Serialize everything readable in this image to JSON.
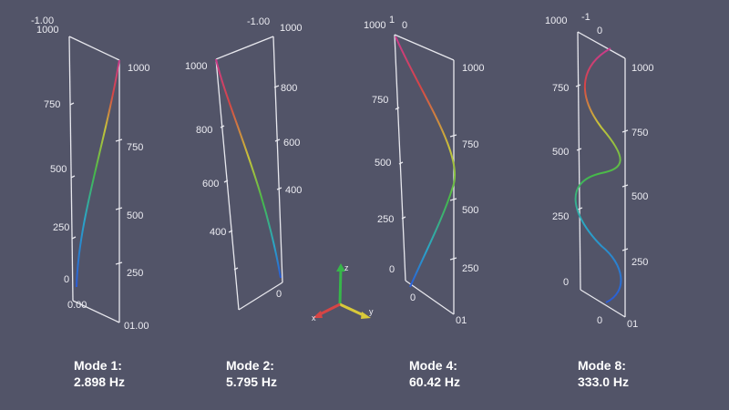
{
  "colors": {
    "background": "#525468",
    "frame": "#e8e8ee",
    "text": "#ececf2",
    "label": "#ffffff",
    "gradient": [
      "#2a5bd7",
      "#2aa6c8",
      "#45b94a",
      "#c8c43a",
      "#d64545",
      "#c93c8e"
    ]
  },
  "panels": [
    {
      "id": "mode1",
      "title": "Mode 1:",
      "freq": "2.898 Hz",
      "top_left_labels": [
        "-1.00",
        "1000"
      ],
      "left_axis": [
        "750",
        "500",
        "250",
        "0"
      ],
      "left_bottom": "0.00",
      "right_axis": [
        "1000",
        "750",
        "500",
        "250"
      ],
      "right_bottom": "01.00"
    },
    {
      "id": "mode2",
      "title": "Mode 2:",
      "freq": "5.795 Hz",
      "top_right_labels": [
        "-1.00",
        "1000"
      ],
      "left_axis": [
        "1000",
        "800",
        "600",
        "400"
      ],
      "right_axis": [
        "800",
        "600",
        "400",
        "0"
      ]
    },
    {
      "id": "mode4",
      "title": "Mode 4:",
      "freq": "60.42 Hz",
      "top_labels": [
        "1000",
        "1",
        "0"
      ],
      "left_axis": [
        "750",
        "500",
        "250",
        "0"
      ],
      "left_bottom": "0",
      "right_axis": [
        "1000",
        "750",
        "500",
        "250"
      ],
      "right_bottom": "01"
    },
    {
      "id": "mode8",
      "title": "Mode 8:",
      "freq": "333.0 Hz",
      "top_labels": [
        "1000",
        "-1",
        "0"
      ],
      "left_axis": [
        "750",
        "500",
        "250",
        "0"
      ],
      "left_bottom": "0",
      "right_axis": [
        "1000",
        "750",
        "500",
        "250"
      ],
      "right_bottom": "01"
    }
  ],
  "orientation_axes": {
    "x": "x",
    "y": "y",
    "z": "z"
  }
}
